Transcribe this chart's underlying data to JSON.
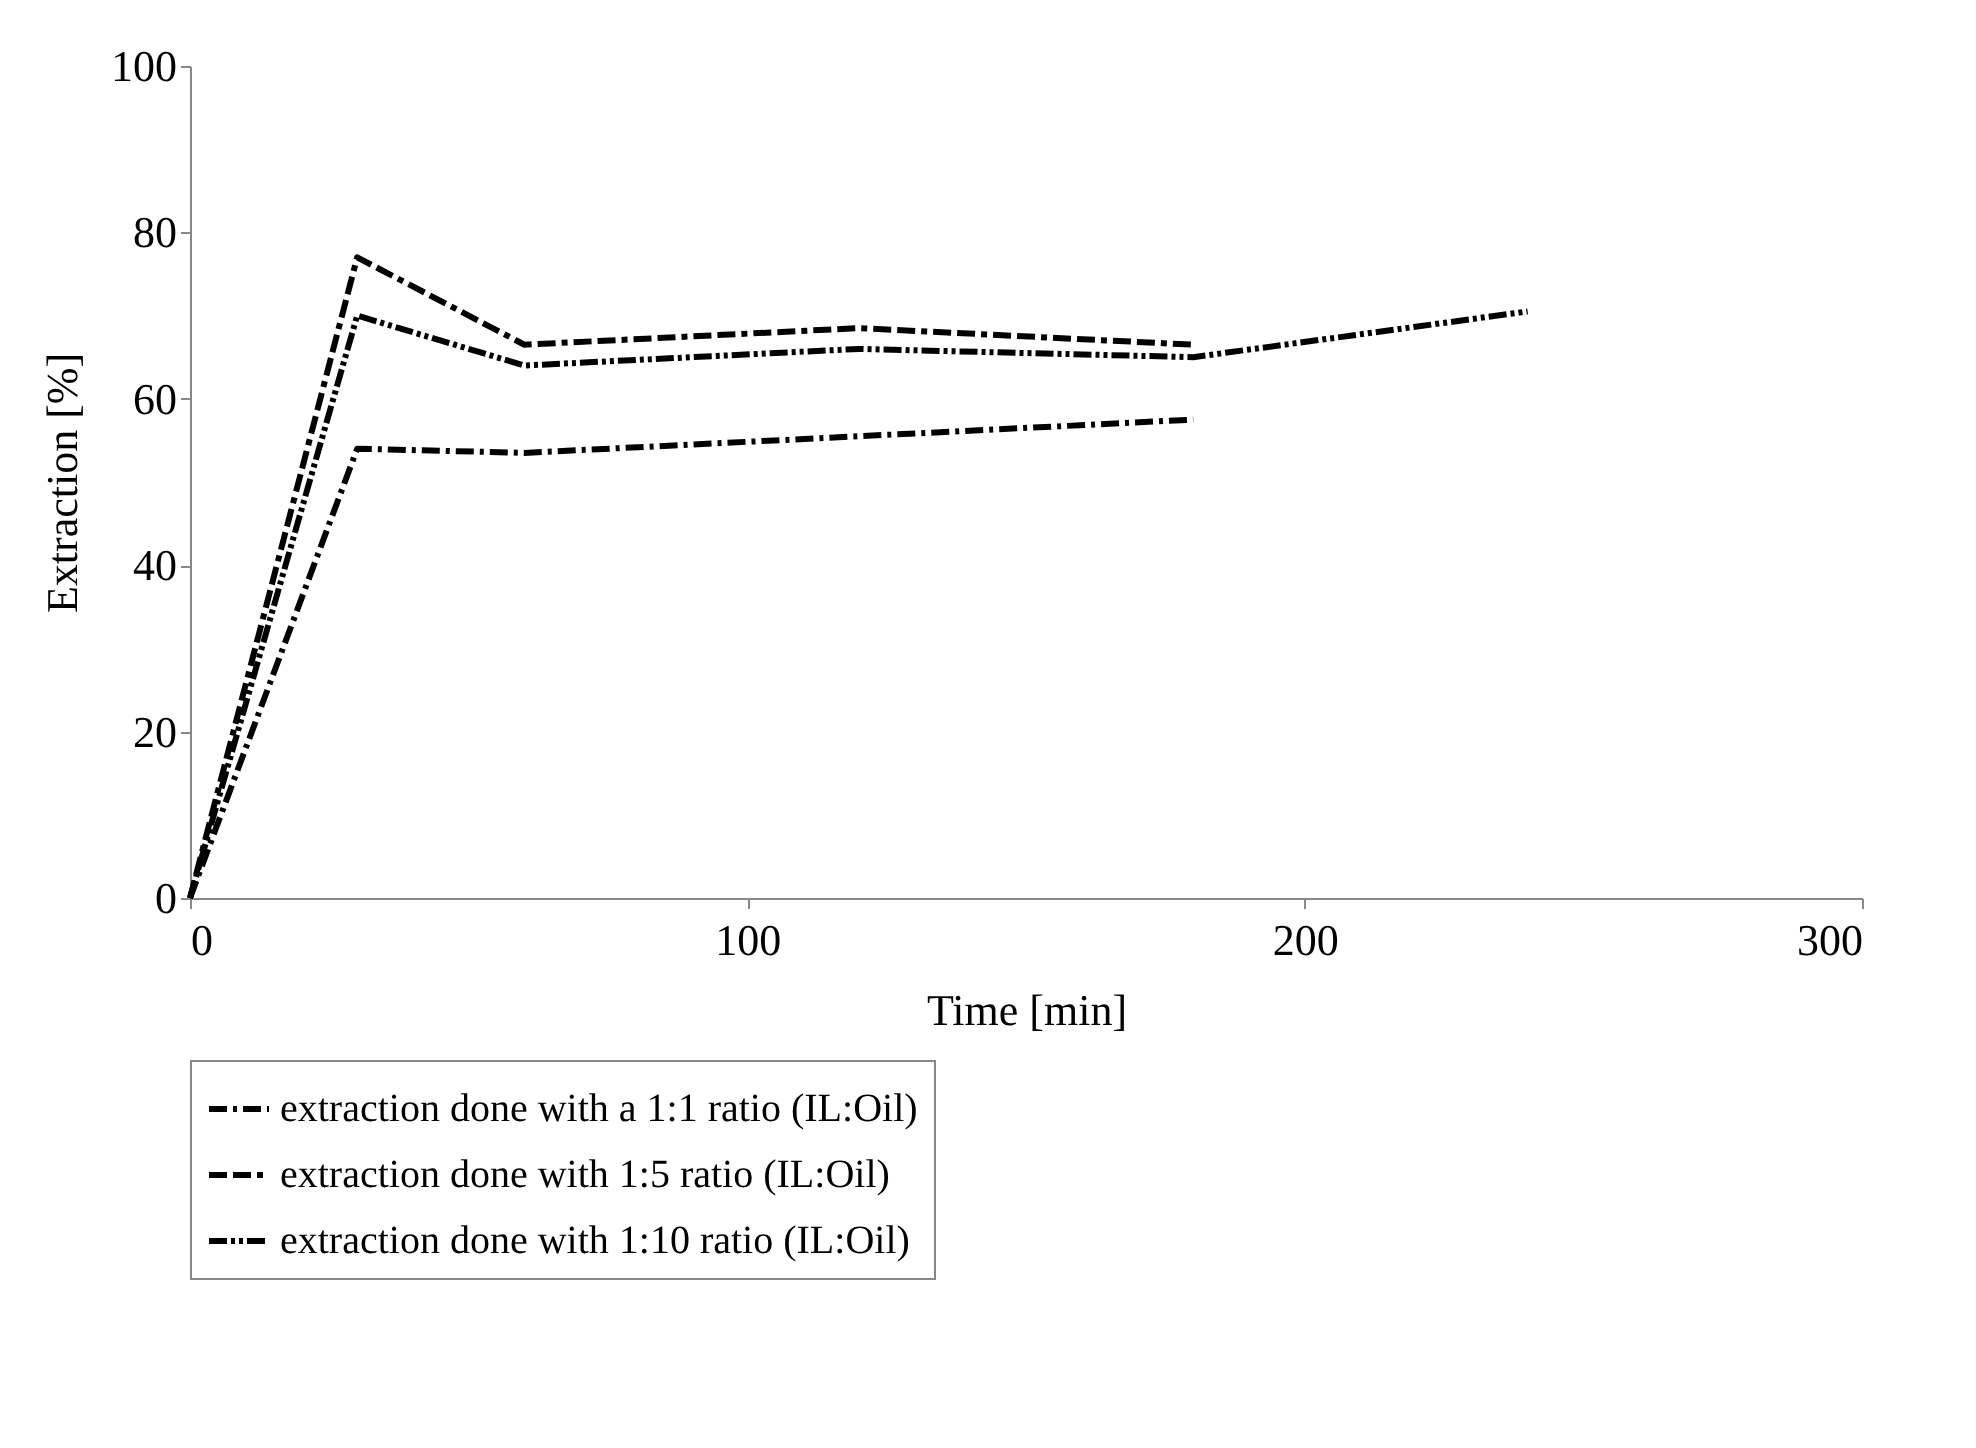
{
  "chart_data": {
    "type": "line",
    "xlabel": "Time [min]",
    "ylabel": "Extraction [%]",
    "xlim": [
      0,
      300
    ],
    "xticks": [
      0,
      100,
      200,
      300
    ],
    "ylim": [
      0,
      100
    ],
    "yticks": [
      0,
      20,
      40,
      60,
      80,
      100
    ],
    "grid": false,
    "legend": "bottom",
    "line_style": "dashed",
    "series": [
      {
        "name": "extraction done with a 1:1 ratio (IL:Oil)",
        "color": "#000000",
        "x": [
          0,
          30,
          60,
          120,
          180
        ],
        "values": [
          0,
          54,
          53.5,
          55.5,
          57.5
        ]
      },
      {
        "name": "extraction done with 1:5 ratio (IL:Oil)",
        "color": "#000000",
        "x": [
          0,
          30,
          60,
          120,
          180
        ],
        "values": [
          0,
          77,
          66.5,
          68.5,
          66.5
        ]
      },
      {
        "name": "extraction done with 1:10 ratio (IL:Oil)",
        "color": "#000000",
        "x": [
          0,
          30,
          60,
          120,
          180,
          240
        ],
        "values": [
          0,
          70,
          64,
          66,
          65,
          70.5
        ]
      }
    ]
  }
}
